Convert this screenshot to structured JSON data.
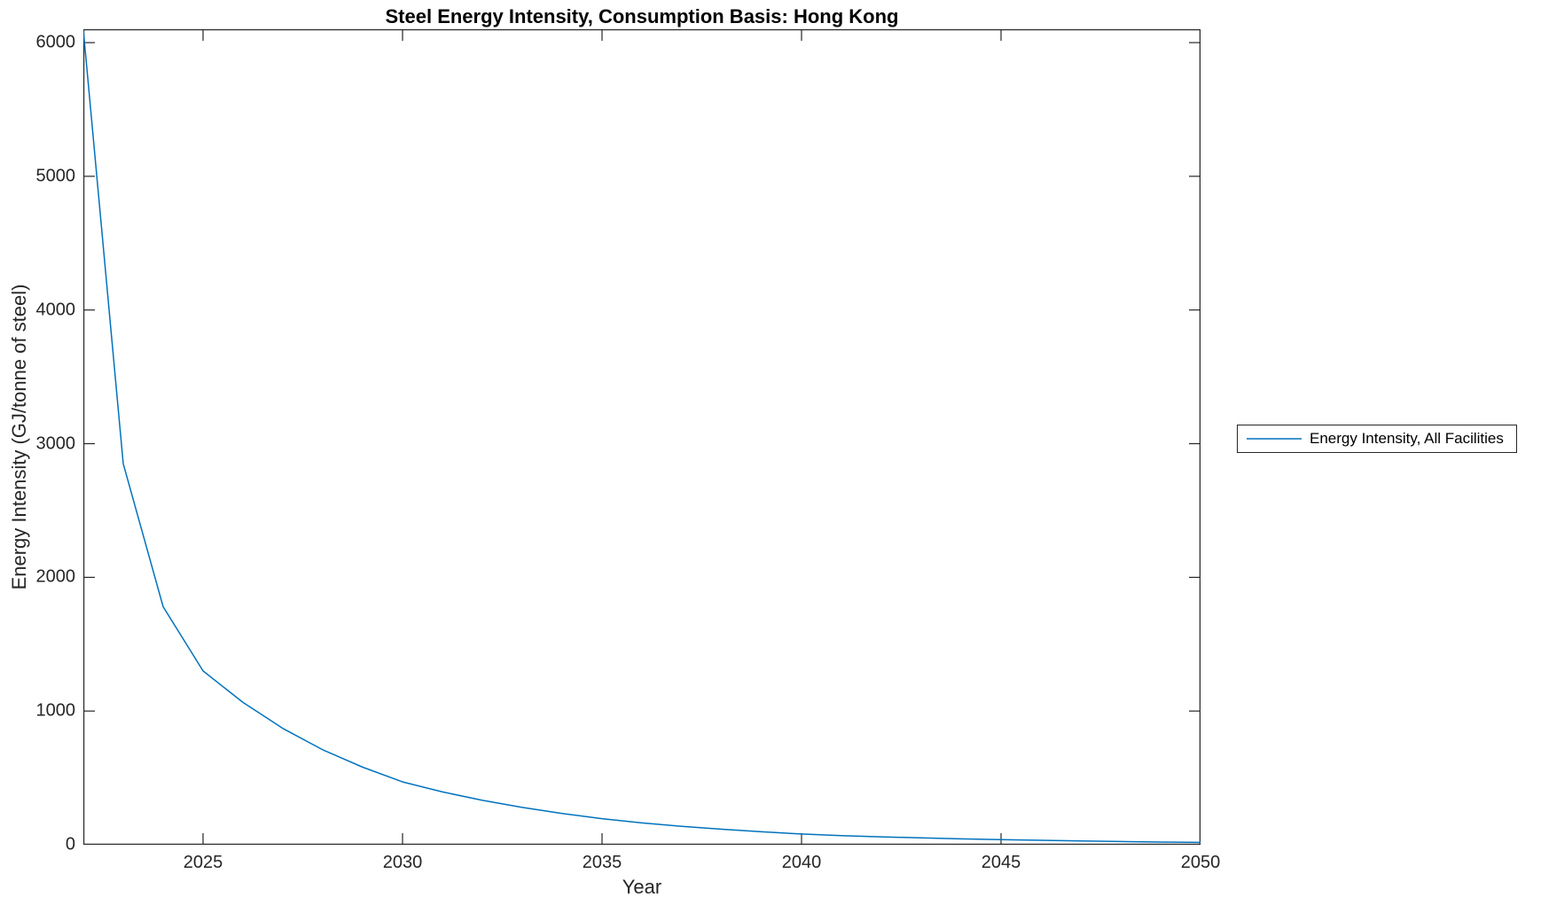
{
  "chart_data": {
    "type": "line",
    "title": "Steel Energy Intensity, Consumption Basis: Hong Kong",
    "xlabel": "Year",
    "ylabel": "Energy Intensity (GJ/tonne of steel)",
    "xlim": [
      2022,
      2050
    ],
    "ylim": [
      0,
      6100
    ],
    "xticks": [
      2025,
      2030,
      2035,
      2040,
      2045,
      2050
    ],
    "yticks": [
      0,
      1000,
      2000,
      3000,
      4000,
      5000,
      6000
    ],
    "grid": false,
    "box": true,
    "axis_color": "#262626",
    "background_color": "#ffffff",
    "legend": {
      "position": "outside-right",
      "entries": [
        "Energy Intensity, All Facilities"
      ]
    },
    "series": [
      {
        "name": "Energy Intensity, All Facilities",
        "color": "#0072BD",
        "x": [
          2022,
          2023,
          2024,
          2025,
          2026,
          2027,
          2028,
          2029,
          2030,
          2031,
          2032,
          2033,
          2034,
          2035,
          2036,
          2037,
          2038,
          2039,
          2040,
          2041,
          2042,
          2043,
          2044,
          2045,
          2046,
          2047,
          2048,
          2049,
          2050
        ],
        "values": [
          6095,
          2850,
          1780,
          1300,
          1065,
          870,
          710,
          580,
          470,
          395,
          332,
          279,
          234,
          195,
          163,
          137,
          116,
          97,
          80,
          68,
          59,
          51,
          44,
          38,
          33,
          28,
          24,
          20,
          17
        ]
      }
    ]
  }
}
